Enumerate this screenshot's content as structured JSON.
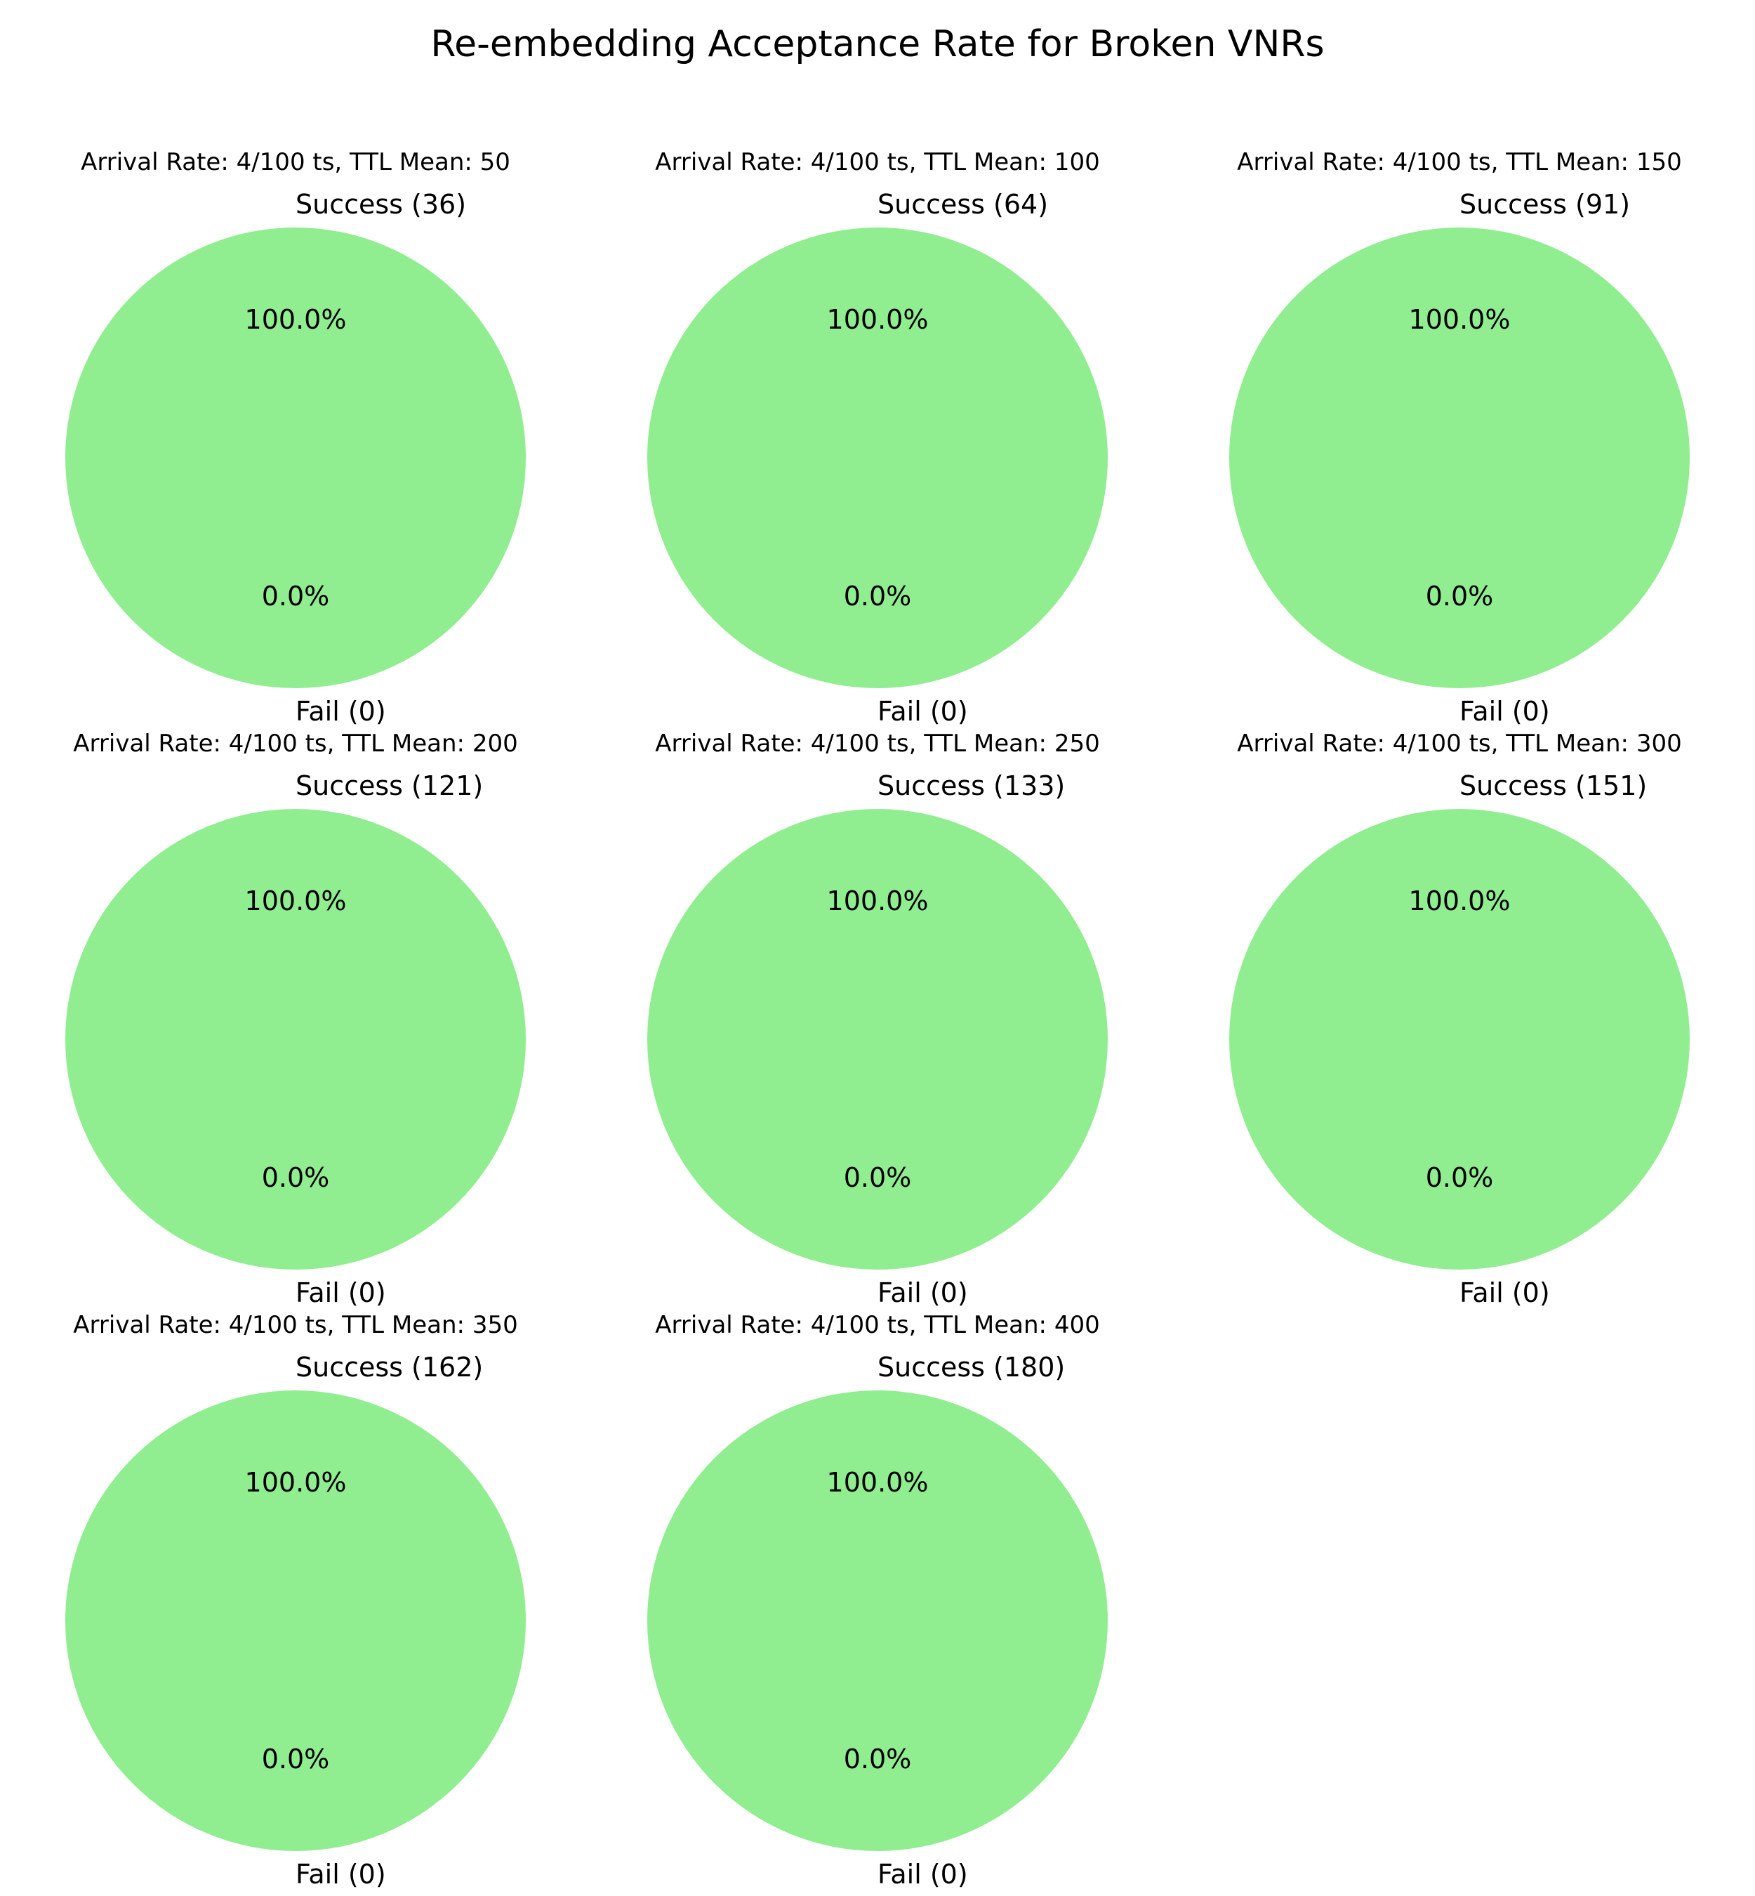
{
  "figure": {
    "title": "Re-embedding Acceptance Rate for Broken VNRs"
  },
  "colors": {
    "success": "#90ee90",
    "fail": "#f08080"
  },
  "chart_data": [
    {
      "type": "pie",
      "title": "Arrival Rate: 4/100 ts, TTL Mean: 50",
      "labels": [
        "Success (36)",
        "Fail (0)"
      ],
      "values": [
        36,
        0
      ],
      "percent_labels": [
        "100.0%",
        "0.0%"
      ]
    },
    {
      "type": "pie",
      "title": "Arrival Rate: 4/100 ts, TTL Mean: 100",
      "labels": [
        "Success (64)",
        "Fail (0)"
      ],
      "values": [
        64,
        0
      ],
      "percent_labels": [
        "100.0%",
        "0.0%"
      ]
    },
    {
      "type": "pie",
      "title": "Arrival Rate: 4/100 ts, TTL Mean: 150",
      "labels": [
        "Success (91)",
        "Fail (0)"
      ],
      "values": [
        91,
        0
      ],
      "percent_labels": [
        "100.0%",
        "0.0%"
      ]
    },
    {
      "type": "pie",
      "title": "Arrival Rate: 4/100 ts, TTL Mean: 200",
      "labels": [
        "Success (121)",
        "Fail (0)"
      ],
      "values": [
        121,
        0
      ],
      "percent_labels": [
        "100.0%",
        "0.0%"
      ]
    },
    {
      "type": "pie",
      "title": "Arrival Rate: 4/100 ts, TTL Mean: 250",
      "labels": [
        "Success (133)",
        "Fail (0)"
      ],
      "values": [
        133,
        0
      ],
      "percent_labels": [
        "100.0%",
        "0.0%"
      ]
    },
    {
      "type": "pie",
      "title": "Arrival Rate: 4/100 ts, TTL Mean: 300",
      "labels": [
        "Success (151)",
        "Fail (0)"
      ],
      "values": [
        151,
        0
      ],
      "percent_labels": [
        "100.0%",
        "0.0%"
      ]
    },
    {
      "type": "pie",
      "title": "Arrival Rate: 4/100 ts, TTL Mean: 350",
      "labels": [
        "Success (162)",
        "Fail (0)"
      ],
      "values": [
        162,
        0
      ],
      "percent_labels": [
        "100.0%",
        "0.0%"
      ]
    },
    {
      "type": "pie",
      "title": "Arrival Rate: 4/100 ts, TTL Mean: 400",
      "labels": [
        "Success (180)",
        "Fail (0)"
      ],
      "values": [
        180,
        0
      ],
      "percent_labels": [
        "100.0%",
        "0.0%"
      ]
    }
  ]
}
